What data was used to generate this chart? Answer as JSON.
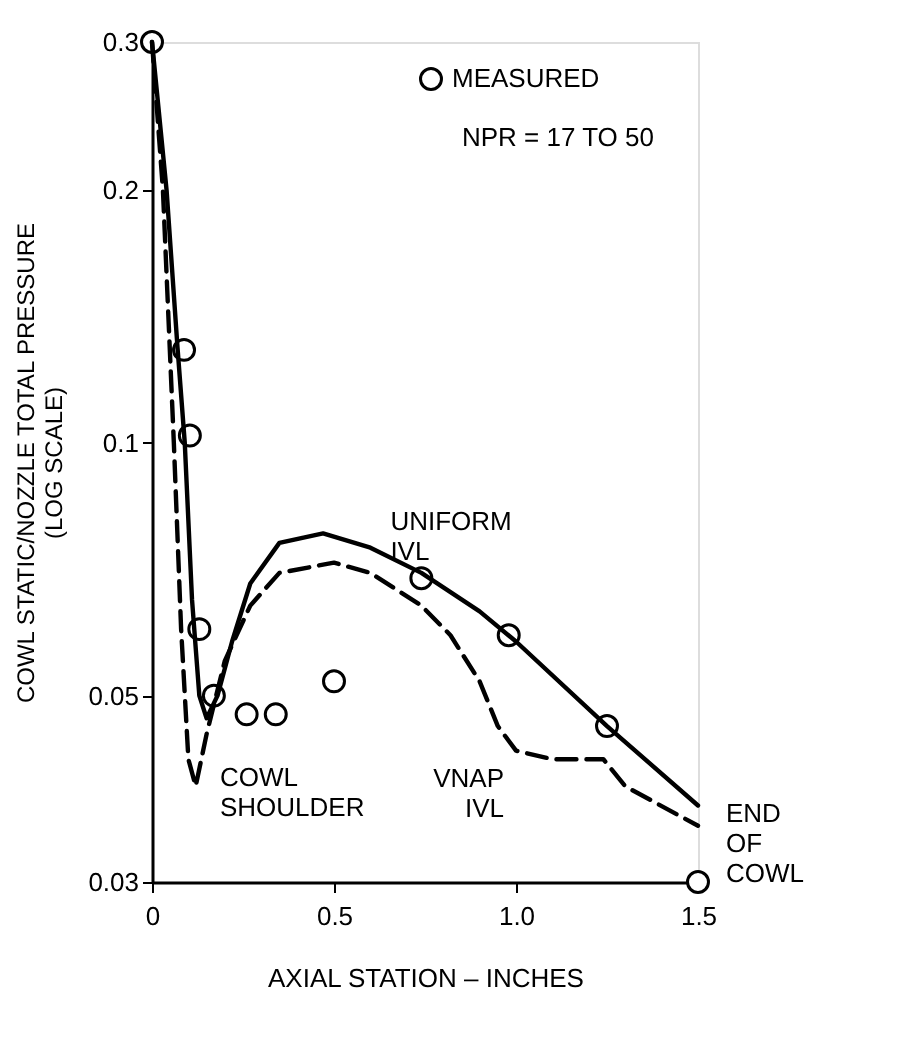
{
  "chart_data": {
    "type": "line",
    "xlabel": "AXIAL STATION – INCHES",
    "ylabel": "COWL STATIC/NOZZLE TOTAL PRESSURE\n(LOG SCALE)",
    "log": "y",
    "xlim": [
      0,
      1.5
    ],
    "xticks": [
      0,
      0.5,
      {
        "value": 1,
        "label": "1.0"
      },
      1.5
    ],
    "ylim": [
      0.03,
      0.3
    ],
    "yticks": [
      0.03,
      0.05,
      0.1,
      0.2,
      0.3
    ],
    "grid": false,
    "legend": "top right",
    "series": [
      {
        "name": "MEASURED",
        "type": "scatter",
        "marker": "circle",
        "color": "#000000",
        "x": [
          0,
          0.088,
          0.104,
          0.13,
          0.17,
          0.26,
          0.34,
          0.5,
          0.74,
          0.98,
          1.25,
          1.5
        ],
        "values": [
          0.3,
          0.129,
          0.102,
          0.06,
          0.05,
          0.0475,
          0.0475,
          0.052,
          0.069,
          0.059,
          0.046,
          0.03
        ]
      },
      {
        "name": "UNIFORM IVL",
        "line_style": "solid",
        "marker": "none",
        "color": "#000000",
        "x": [
          0,
          0.04,
          0.07,
          0.09,
          0.11,
          0.13,
          0.15,
          0.18,
          0.22,
          0.27,
          0.35,
          0.47,
          0.6,
          0.74,
          0.9,
          1.0,
          1.25,
          1.5
        ],
        "values": [
          0.3,
          0.2,
          0.13,
          0.1,
          0.065,
          0.05,
          0.047,
          0.05,
          0.058,
          0.068,
          0.076,
          0.078,
          0.075,
          0.07,
          0.063,
          0.058,
          0.046,
          0.037
        ]
      },
      {
        "name": "VNAP IVL",
        "line_style": "dashed",
        "marker": "none",
        "color": "#000000",
        "x": [
          0,
          0.03,
          0.06,
          0.08,
          0.1,
          0.12,
          0.15,
          0.2,
          0.27,
          0.35,
          0.5,
          0.6,
          0.74,
          0.82,
          0.9,
          0.95,
          1.0,
          1.1,
          1.24,
          1.3,
          1.5
        ],
        "values": [
          0.3,
          0.2,
          0.1,
          0.06,
          0.042,
          0.039,
          0.045,
          0.055,
          0.064,
          0.07,
          0.072,
          0.07,
          0.064,
          0.059,
          0.052,
          0.046,
          0.043,
          0.042,
          0.042,
          0.039,
          0.035
        ]
      }
    ],
    "annotations": [
      "NPR = 17 TO 50",
      "COWL SHOULDER",
      "END OF COWL"
    ]
  }
}
